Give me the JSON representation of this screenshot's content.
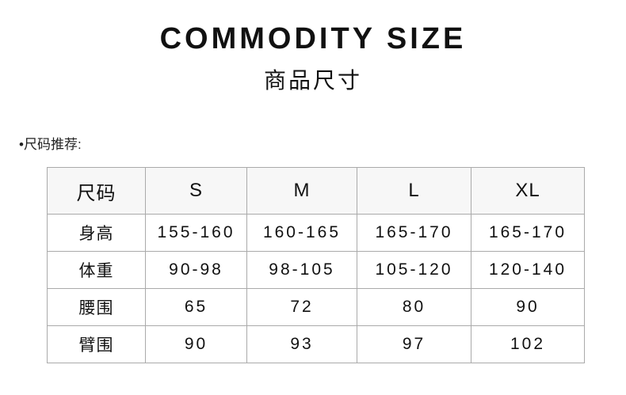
{
  "title": "COMMODITY SIZE",
  "subtitle": "商品尺寸",
  "recommendation_label": "•尺码推荐:",
  "table": {
    "header": [
      "尺码",
      "S",
      "M",
      "L",
      "XL"
    ],
    "rows": [
      [
        "身高",
        "155-160",
        "160-165",
        "165-170",
        "165-170"
      ],
      [
        "体重",
        "90-98",
        "98-105",
        "105-120",
        "120-140"
      ],
      [
        "腰围",
        "65",
        "72",
        "80",
        "90"
      ],
      [
        "臂围",
        "90",
        "93",
        "97",
        "102"
      ]
    ]
  }
}
